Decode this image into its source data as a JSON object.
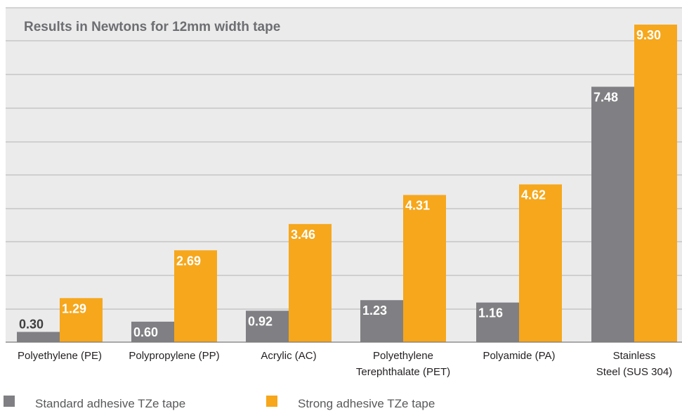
{
  "colors": {
    "standard": "#807f83",
    "strong": "#f6a71c",
    "background": "#ebebec",
    "grid": "#b3b3b5"
  },
  "chart_data": {
    "type": "bar",
    "title": "Results in Newtons for 12mm width tape",
    "xlabel": "",
    "ylabel": "",
    "ylim": [
      0,
      9.5
    ],
    "grid": true,
    "legend_position": "bottom",
    "categories": [
      [
        "Polyethylene (PE)"
      ],
      [
        "Polypropylene (PP)"
      ],
      [
        "Acrylic (AC)"
      ],
      [
        "Polyethylene",
        "Terephthalate (PET)"
      ],
      [
        "Polyamide (PA)"
      ],
      [
        "Stainless",
        "Steel (SUS 304)"
      ]
    ],
    "series": [
      {
        "name": "Standard adhesive TZe tape",
        "values": [
          0.3,
          0.6,
          0.92,
          1.23,
          1.16,
          7.48
        ],
        "labels": [
          "0.30",
          "0.60",
          "0.92",
          "1.23",
          "1.16",
          "7.48"
        ]
      },
      {
        "name": "Strong adhesive TZe tape",
        "values": [
          1.29,
          2.69,
          3.46,
          4.31,
          4.62,
          9.3
        ],
        "labels": [
          "1.29",
          "2.69",
          "3.46",
          "4.31",
          "4.62",
          "9.30"
        ]
      }
    ]
  }
}
